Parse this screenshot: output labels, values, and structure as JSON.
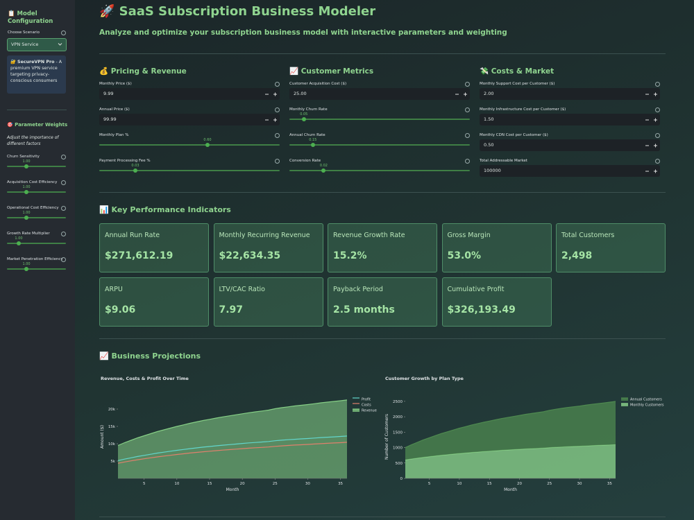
{
  "sidebar": {
    "title": "📋 Model Configuration",
    "scenario_label": "Choose Scenario",
    "scenario": "VPN Service",
    "info_title": "🔐 SecureVPN Pro",
    "info_text": " - A premium VPN service targeting privacy-conscious consumers",
    "weights_title": "🎯 Parameter Weights",
    "weights_subtitle": "Adjust the importance of different factors",
    "sliders": [
      {
        "label": "Churn Sensitivity",
        "value": "1.00"
      },
      {
        "label": "Acquisition Cost Efficiency",
        "value": "1.00"
      },
      {
        "label": "Operational Cost Efficiency",
        "value": "1.00"
      },
      {
        "label": "Growth Rate Multiplier",
        "value": "1.00"
      },
      {
        "label": "Market Penetration Efficiency",
        "value": "1.00"
      }
    ]
  },
  "header": {
    "title": "🚀 SaaS Subscription Business Modeler",
    "subtitle": "Analyze and optimize your subscription business model with interactive parameters and weighting"
  },
  "columns": [
    {
      "title": "💰 Pricing & Revenue",
      "inputs": [
        {
          "label": "Monthly Price ($)",
          "value": "9.99"
        },
        {
          "label": "Annual Price ($)",
          "value": "99.99"
        }
      ],
      "sliders": [
        {
          "label": "Monthly Plan %",
          "value": "0.60"
        },
        {
          "label": "Payment Processing Fee %",
          "value": "0.03"
        }
      ]
    },
    {
      "title": "📈 Customer Metrics",
      "inputs": [
        {
          "label": "Customer Acquisition Cost ($)",
          "value": "25.00"
        }
      ],
      "sliders": [
        {
          "label": "Monthly Churn Rate",
          "value": "0.05"
        },
        {
          "label": "Annual Churn Rate",
          "value": "0.15"
        },
        {
          "label": "Conversion Rate",
          "value": "0.02"
        }
      ]
    },
    {
      "title": "💸 Costs & Market",
      "inputs": [
        {
          "label": "Monthly Support Cost per Customer ($)",
          "value": "2.00"
        },
        {
          "label": "Monthly Infrastructure Cost per Customer ($)",
          "value": "1.50"
        },
        {
          "label": "Monthly CDN Cost per Customer ($)",
          "value": "0.50"
        },
        {
          "label": "Total Addressable Market",
          "value": "100000"
        }
      ],
      "sliders": []
    }
  ],
  "kpi": {
    "title": "📊 Key Performance Indicators",
    "cards": [
      {
        "label": "Annual Run Rate",
        "value": "$271,612.19"
      },
      {
        "label": "Monthly Recurring Revenue",
        "value": "$22,634.35"
      },
      {
        "label": "Revenue Growth Rate",
        "value": "15.2%"
      },
      {
        "label": "Gross Margin",
        "value": "53.0%"
      },
      {
        "label": "Total Customers",
        "value": "2,498"
      },
      {
        "label": "ARPU",
        "value": "$9.06"
      },
      {
        "label": "LTV/CAC Ratio",
        "value": "7.97"
      },
      {
        "label": "Payback Period",
        "value": "2.5 months"
      },
      {
        "label": "Cumulative Profit",
        "value": "$326,193.49"
      }
    ]
  },
  "projections": {
    "title": "📈 Business Projections"
  },
  "chart_data": [
    {
      "type": "line",
      "title": "Revenue, Costs & Profit Over Time",
      "x_label": "Month",
      "y_label": "Amount ($)",
      "legend": "right",
      "grid": false,
      "x": [
        1,
        2,
        3,
        4,
        5,
        6,
        7,
        8,
        9,
        10,
        11,
        12,
        13,
        14,
        15,
        16,
        17,
        18,
        19,
        20,
        21,
        22,
        23,
        24,
        25,
        26,
        27,
        28,
        29,
        30,
        31,
        32,
        33,
        34,
        35,
        36
      ],
      "xlim": [
        1,
        36
      ],
      "xticks": [
        5,
        10,
        15,
        20,
        25,
        30,
        35
      ],
      "ylim": [
        0,
        24000
      ],
      "yticks": [
        {
          "value": 5000,
          "label": "5k"
        },
        {
          "value": 10000,
          "label": "10k"
        },
        {
          "value": 15000,
          "label": "15k"
        },
        {
          "value": 20000,
          "label": "20k"
        }
      ],
      "series": [
        {
          "name": "Profit",
          "color": "#62d6cc",
          "fill": false,
          "values": [
            5130,
            5562,
            5940,
            6318,
            6642,
            6966,
            7290,
            7560,
            7830,
            8100,
            8343,
            8586,
            8802,
            9018,
            9207,
            9396,
            9585,
            9747,
            9909,
            10071,
            10233,
            10368,
            10503,
            10638,
            10854,
            11016,
            11151,
            11286,
            11394,
            11502,
            11637,
            11772,
            11880,
            11988,
            12096,
            12220
          ]
        },
        {
          "name": "Costs",
          "color": "#e0806c",
          "fill": false,
          "values": [
            4370,
            4738,
            5060,
            5382,
            5658,
            5934,
            6210,
            6440,
            6670,
            6900,
            7107,
            7314,
            7498,
            7682,
            7843,
            8004,
            8165,
            8303,
            8441,
            8579,
            8717,
            8832,
            8947,
            9062,
            9246,
            9384,
            9499,
            9614,
            9706,
            9798,
            9913,
            10028,
            10120,
            10212,
            10304,
            10410
          ]
        },
        {
          "name": "Revenue",
          "color": "#86cf86",
          "fill": true,
          "values": [
            9500,
            10300,
            11000,
            11700,
            12300,
            12900,
            13500,
            14000,
            14500,
            15000,
            15450,
            15900,
            16300,
            16700,
            17050,
            17400,
            17750,
            18050,
            18350,
            18650,
            18950,
            19200,
            19450,
            19700,
            20100,
            20400,
            20650,
            20900,
            21100,
            21300,
            21550,
            21800,
            22000,
            22200,
            22400,
            22630
          ]
        }
      ]
    },
    {
      "type": "area",
      "stacked": true,
      "title": "Customer Growth by Plan Type",
      "x_label": "Month",
      "y_label": "Number of Customers",
      "legend": "right",
      "grid": false,
      "x": [
        1,
        2,
        3,
        4,
        5,
        6,
        7,
        8,
        9,
        10,
        11,
        12,
        13,
        14,
        15,
        16,
        17,
        18,
        19,
        20,
        21,
        22,
        23,
        24,
        25,
        26,
        27,
        28,
        29,
        30,
        31,
        32,
        33,
        34,
        35,
        36
      ],
      "xlim": [
        1,
        36
      ],
      "xticks": [
        5,
        10,
        15,
        20,
        25,
        30,
        35
      ],
      "ylim": [
        0,
        2700
      ],
      "yticks": [
        0,
        500,
        1000,
        1500,
        2000,
        2500
      ],
      "series": [
        {
          "name": "Annual Customers",
          "color": "#4f8a50",
          "values": [
            400,
            461,
            514,
            568,
            613,
            660,
            705,
            743,
            781,
            821,
            855,
            889,
            920,
            950,
            976,
            1003,
            1030,
            1053,
            1076,
            1099,
            1122,
            1141,
            1160,
            1179,
            1209,
            1233,
            1252,
            1271,
            1287,
            1301,
            1321,
            1339,
            1355,
            1370,
            1386,
            1403
          ]
        },
        {
          "name": "Monthly Customers",
          "color": "#8fd88f",
          "values": [
            600,
            630,
            657,
            683,
            706,
            728,
            751,
            770,
            789,
            807,
            824,
            841,
            856,
            871,
            885,
            898,
            911,
            922,
            934,
            945,
            956,
            966,
            975,
            985,
            1000,
            1011,
            1020,
            1030,
            1037,
            1045,
            1054,
            1064,
            1071,
            1079,
            1086,
            1095
          ]
        }
      ]
    }
  ]
}
